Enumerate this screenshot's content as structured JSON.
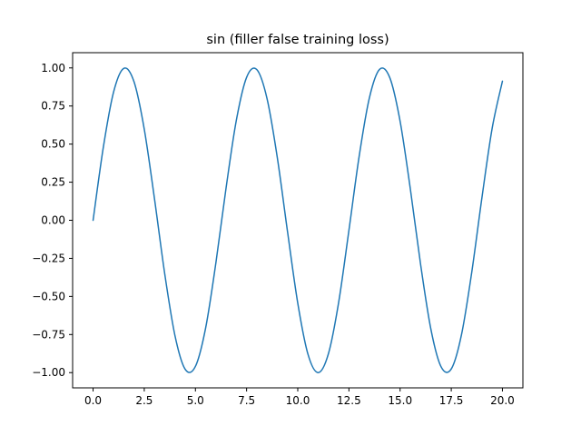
{
  "chart_data": {
    "type": "line",
    "title": "sin (filler false training loss)",
    "xlabel": "",
    "ylabel": "",
    "xlim": [
      -1.0,
      21.0
    ],
    "ylim": [
      -1.1,
      1.1
    ],
    "xticks": [
      0.0,
      2.5,
      5.0,
      7.5,
      10.0,
      12.5,
      15.0,
      17.5,
      20.0
    ],
    "xtick_labels": [
      "0.0",
      "2.5",
      "5.0",
      "7.5",
      "10.0",
      "12.5",
      "15.0",
      "17.5",
      "20.0"
    ],
    "yticks": [
      -1.0,
      -0.75,
      -0.5,
      -0.25,
      0.0,
      0.25,
      0.5,
      0.75,
      1.0
    ],
    "ytick_labels": [
      "−1.00",
      "−0.75",
      "−0.50",
      "−0.25",
      "0.00",
      "0.25",
      "0.50",
      "0.75",
      "1.00"
    ],
    "grid": false,
    "legend": "none",
    "series": [
      {
        "color": "#1f77b4",
        "x": [
          0,
          0.5,
          1,
          1.5,
          2,
          2.5,
          3,
          3.5,
          4,
          4.5,
          5,
          5.5,
          6,
          6.5,
          7,
          7.5,
          8,
          8.5,
          9,
          9.5,
          10,
          10.5,
          11,
          11.5,
          12,
          12.5,
          13,
          13.5,
          14,
          14.5,
          15,
          15.5,
          16,
          16.5,
          17,
          17.5,
          18,
          18.5,
          19,
          19.5,
          20
        ],
        "y": [
          0.0,
          0.479,
          0.841,
          0.997,
          0.909,
          0.598,
          0.141,
          -0.351,
          -0.757,
          -0.978,
          -0.959,
          -0.706,
          -0.279,
          0.215,
          0.657,
          0.938,
          0.989,
          0.798,
          0.412,
          -0.075,
          -0.544,
          -0.88,
          -1.0,
          -0.875,
          -0.537,
          -0.066,
          0.42,
          0.804,
          0.991,
          0.935,
          0.65,
          0.206,
          -0.288,
          -0.712,
          -0.961,
          -0.976,
          -0.751,
          -0.342,
          0.15,
          0.605,
          0.913
        ]
      }
    ]
  }
}
